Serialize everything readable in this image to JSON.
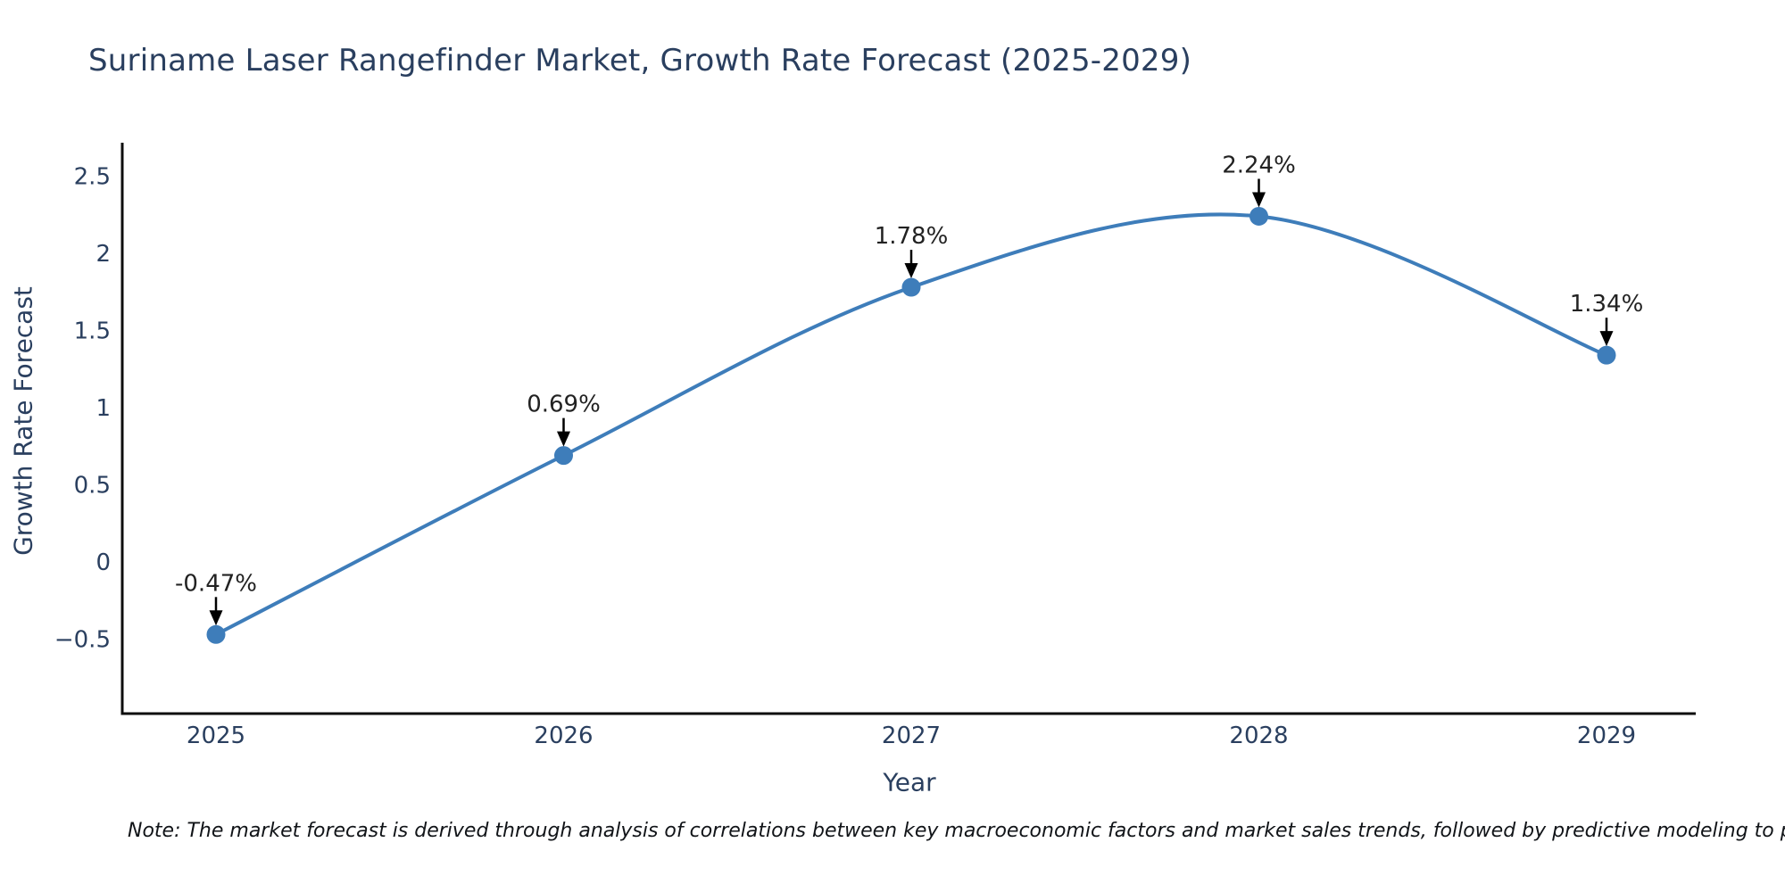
{
  "header": {
    "title": "Suriname Laser Rangefinder Market, Growth Rate Forecast (2025-2029)"
  },
  "chart_data": {
    "type": "line",
    "title": "Suriname Laser Rangefinder Market, Growth Rate Forecast (2025-2029)",
    "xlabel": "Year",
    "ylabel": "Growth Rate Forecast",
    "categories": [
      "2025",
      "2026",
      "2027",
      "2028",
      "2029"
    ],
    "series": [
      {
        "name": "Growth Rate Forecast",
        "values": [
          -0.47,
          0.69,
          1.78,
          2.24,
          1.34
        ]
      }
    ],
    "point_labels": [
      "-0.47%",
      "0.69%",
      "1.78%",
      "2.24%",
      "1.34%"
    ],
    "yticks": [
      -0.5,
      0,
      0.5,
      1,
      1.5,
      2,
      2.5
    ],
    "ytick_labels": [
      "−0.5",
      "0",
      "0.5",
      "1",
      "1.5",
      "2",
      "2.5"
    ],
    "ylim": [
      -0.98,
      2.72
    ],
    "line_shape": "spline",
    "grid": false,
    "legend": "none",
    "colors": {
      "line": "#3e7dba",
      "marker": "#3e7dba",
      "axis": "#0d0d0d",
      "text": "#2a3f5f",
      "annotation": "#222222"
    }
  },
  "footnote": {
    "text": "Note: The market forecast is derived through analysis of correlations between key macroeconomic factors and market sales trends, followed by predictive modeling to project future sa"
  }
}
